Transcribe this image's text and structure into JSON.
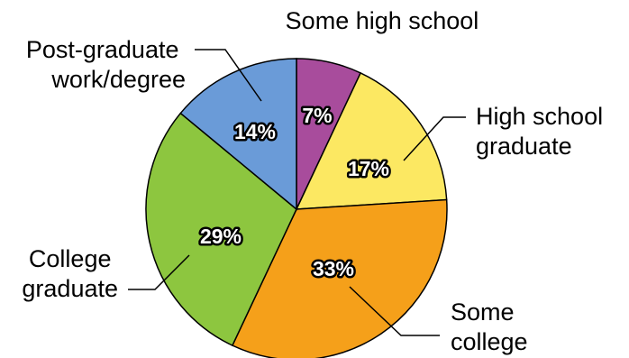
{
  "chart_data": {
    "type": "pie",
    "title": "",
    "slices": [
      {
        "label": "Some high school",
        "label_lines": [
          "Some high school"
        ],
        "value": 7,
        "display": "7%",
        "color": "#A84C9C"
      },
      {
        "label": "High school graduate",
        "label_lines": [
          "High school",
          "graduate"
        ],
        "value": 17,
        "display": "17%",
        "color": "#FCE862"
      },
      {
        "label": "Some college",
        "label_lines": [
          "Some",
          "college"
        ],
        "value": 33,
        "display": "33%",
        "color": "#F5A01A"
      },
      {
        "label": "College graduate",
        "label_lines": [
          "College",
          "graduate"
        ],
        "value": 29,
        "display": "29%",
        "color": "#8DC63F"
      },
      {
        "label": "Post-graduate work/degree",
        "label_lines": [
          "Post-graduate",
          "work/degree"
        ],
        "value": 14,
        "display": "14%",
        "color": "#6A9BD8"
      }
    ],
    "start": "top",
    "direction": "clockwise"
  }
}
